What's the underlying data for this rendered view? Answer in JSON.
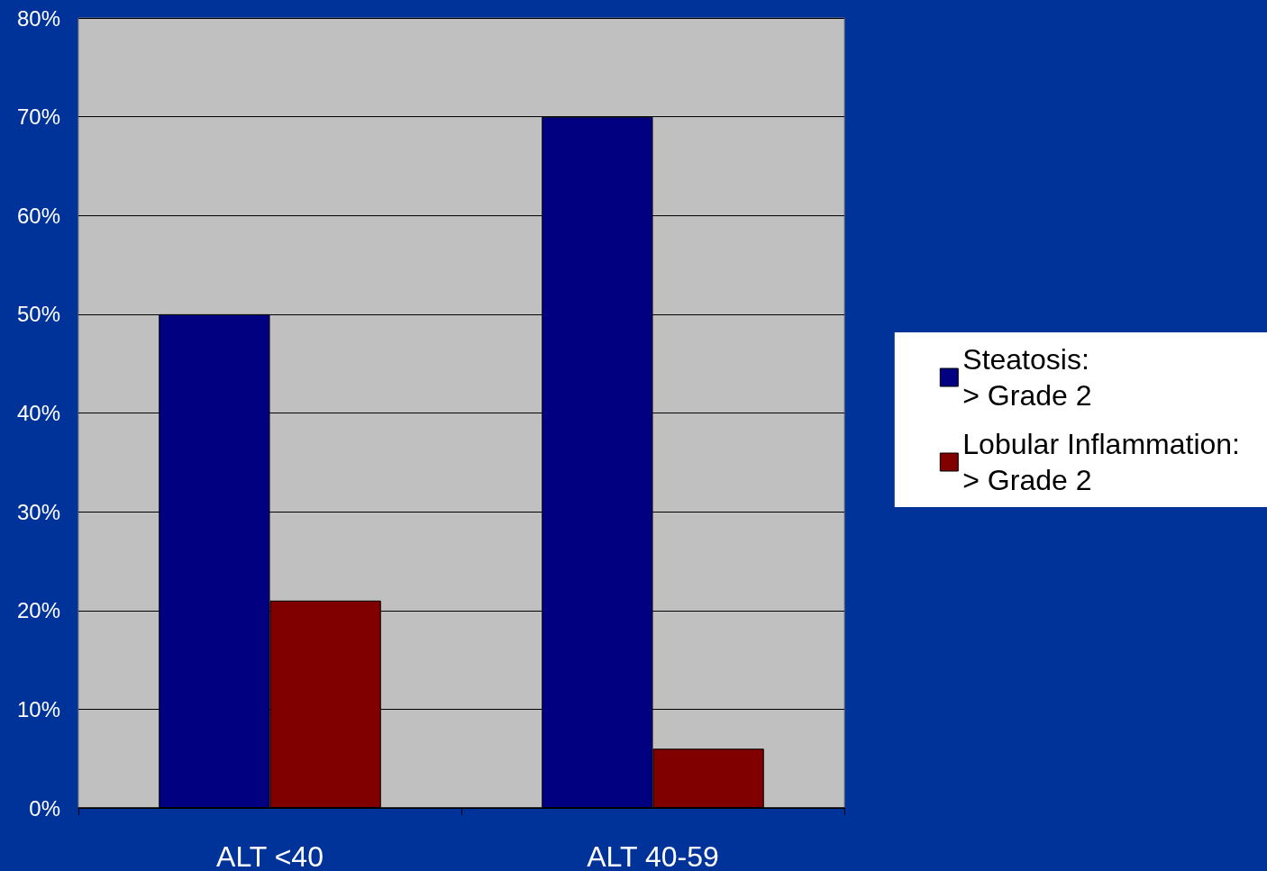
{
  "chart_data": {
    "type": "bar",
    "categories": [
      "ALT <40",
      "ALT 40-59"
    ],
    "series": [
      {
        "name": "Steatosis:\n> Grade 2",
        "color": "#000080",
        "values": [
          50,
          70
        ]
      },
      {
        "name": "Lobular Inflammation:\n> Grade 2",
        "color": "#800000",
        "values": [
          21,
          6
        ]
      }
    ],
    "ylim": [
      0,
      80
    ],
    "yticks": [
      {
        "value": 0,
        "label": "0%"
      },
      {
        "value": 10,
        "label": "10%"
      },
      {
        "value": 20,
        "label": "20%"
      },
      {
        "value": 30,
        "label": "30%"
      },
      {
        "value": 40,
        "label": "40%"
      },
      {
        "value": 50,
        "label": "50%"
      },
      {
        "value": 60,
        "label": "60%"
      },
      {
        "value": 70,
        "label": "70%"
      },
      {
        "value": 80,
        "label": "80%"
      }
    ],
    "grid": "y",
    "legend": "right"
  }
}
